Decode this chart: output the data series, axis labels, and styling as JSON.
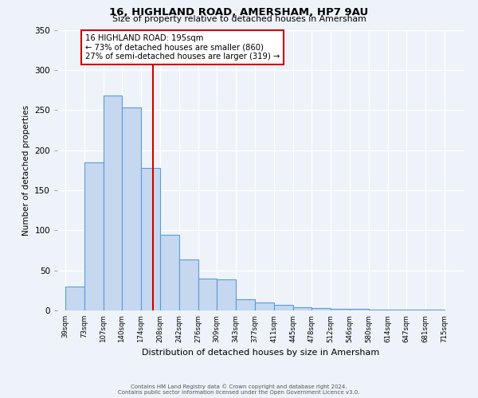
{
  "title": "16, HIGHLAND ROAD, AMERSHAM, HP7 9AU",
  "subtitle": "Size of property relative to detached houses in Amersham",
  "xlabel": "Distribution of detached houses by size in Amersham",
  "ylabel": "Number of detached properties",
  "bar_left_edges": [
    39,
    73,
    107,
    140,
    174,
    208,
    242,
    276,
    309,
    343,
    377,
    411,
    445,
    478,
    512,
    546,
    580,
    614,
    647,
    681
  ],
  "bar_widths": [
    34,
    34,
    33,
    34,
    34,
    34,
    34,
    33,
    34,
    34,
    34,
    34,
    33,
    34,
    34,
    34,
    34,
    33,
    34,
    34
  ],
  "bar_heights": [
    30,
    185,
    268,
    253,
    178,
    94,
    64,
    40,
    39,
    14,
    10,
    7,
    4,
    3,
    2,
    2,
    1,
    1,
    1,
    1
  ],
  "bar_color": "#c5d8f0",
  "bar_edge_color": "#5b9bd5",
  "x_tick_labels": [
    "39sqm",
    "73sqm",
    "107sqm",
    "140sqm",
    "174sqm",
    "208sqm",
    "242sqm",
    "276sqm",
    "309sqm",
    "343sqm",
    "377sqm",
    "411sqm",
    "445sqm",
    "478sqm",
    "512sqm",
    "546sqm",
    "580sqm",
    "614sqm",
    "647sqm",
    "681sqm",
    "715sqm"
  ],
  "x_tick_positions": [
    39,
    73,
    107,
    140,
    174,
    208,
    242,
    276,
    309,
    343,
    377,
    411,
    445,
    478,
    512,
    546,
    580,
    614,
    647,
    681,
    715
  ],
  "ylim": [
    0,
    350
  ],
  "xlim": [
    25,
    749
  ],
  "vline_x": 195,
  "vline_color": "#cc0000",
  "annotation_title": "16 HIGHLAND ROAD: 195sqm",
  "annotation_line1": "← 73% of detached houses are smaller (860)",
  "annotation_line2": "27% of semi-detached houses are larger (319) →",
  "annotation_box_color": "#cc0000",
  "footer_line1": "Contains HM Land Registry data © Crown copyright and database right 2024.",
  "footer_line2": "Contains public sector information licensed under the Open Government Licence v3.0.",
  "background_color": "#eef2f9",
  "plot_bg_color": "#eef2f9",
  "grid_color": "#ffffff"
}
